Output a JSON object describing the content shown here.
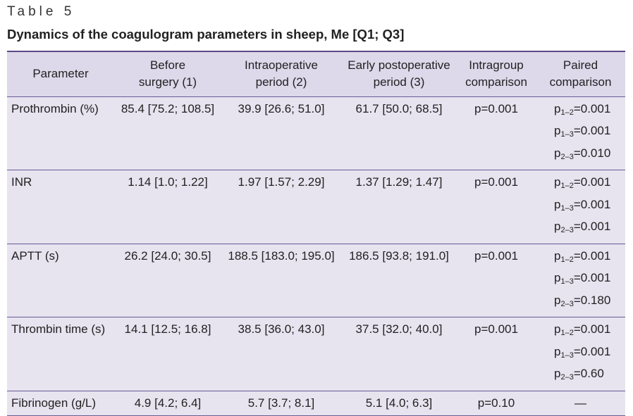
{
  "table_label": "Table 5",
  "title": "Dynamics of the coagulogram parameters in sheep, Me [Q1; Q3]",
  "headers": [
    "Parameter",
    "Before\nsurgery (1)",
    "Intraoperative\nperiod (2)",
    "Early postoperative\nperiod (3)",
    "Intragroup\ncomparison",
    "Paired\ncomparison"
  ],
  "rows": [
    {
      "parameter": "Prothrombin (%)",
      "before": "85.4 [75.2; 108.5]",
      "intraop": "39.9 [26.6; 51.0]",
      "postop": "61.7 [50.0; 68.5]",
      "intragroup": "p=0.001",
      "paired": [
        {
          "sub": "1–2",
          "val": "=0.001"
        },
        {
          "sub": "1–3",
          "val": "=0.001"
        },
        {
          "sub": "2–3",
          "val": "=0.010"
        }
      ]
    },
    {
      "parameter": "INR",
      "before": "1.14 [1.0; 1.22]",
      "intraop": "1.97 [1.57; 2.29]",
      "postop": "1.37 [1.29; 1.47]",
      "intragroup": "p=0.001",
      "paired": [
        {
          "sub": "1–2",
          "val": "=0.001"
        },
        {
          "sub": "1–3",
          "val": "=0.001"
        },
        {
          "sub": "2–3",
          "val": "=0.001"
        }
      ]
    },
    {
      "parameter": "APTT (s)",
      "before": "26.2 [24.0; 30.5]",
      "intraop": "188.5 [183.0; 195.0]",
      "postop": "186.5 [93.8; 191.0]",
      "intragroup": "p=0.001",
      "paired": [
        {
          "sub": "1–2",
          "val": "=0.001"
        },
        {
          "sub": "1–3",
          "val": "=0.001"
        },
        {
          "sub": "2–3",
          "val": "=0.180"
        }
      ]
    },
    {
      "parameter": "Thrombin time (s)",
      "before": "14.1 [12.5; 16.8]",
      "intraop": "38.5 [36.0; 43.0]",
      "postop": "37.5 [32.0; 40.0]",
      "intragroup": "p=0.001",
      "paired": [
        {
          "sub": "1–2",
          "val": "=0.001"
        },
        {
          "sub": "1–3",
          "val": "=0.001"
        },
        {
          "sub": "2–3",
          "val": "=0.60"
        }
      ]
    },
    {
      "parameter": "Fibrinogen (g/L)",
      "before": "4.9 [4.2; 6.4]",
      "intraop": "5.7 [3.7; 8.1]",
      "postop": "5.1 [4.0; 6.3]",
      "intragroup": "p=0.10",
      "paired_dash": "—"
    }
  ]
}
